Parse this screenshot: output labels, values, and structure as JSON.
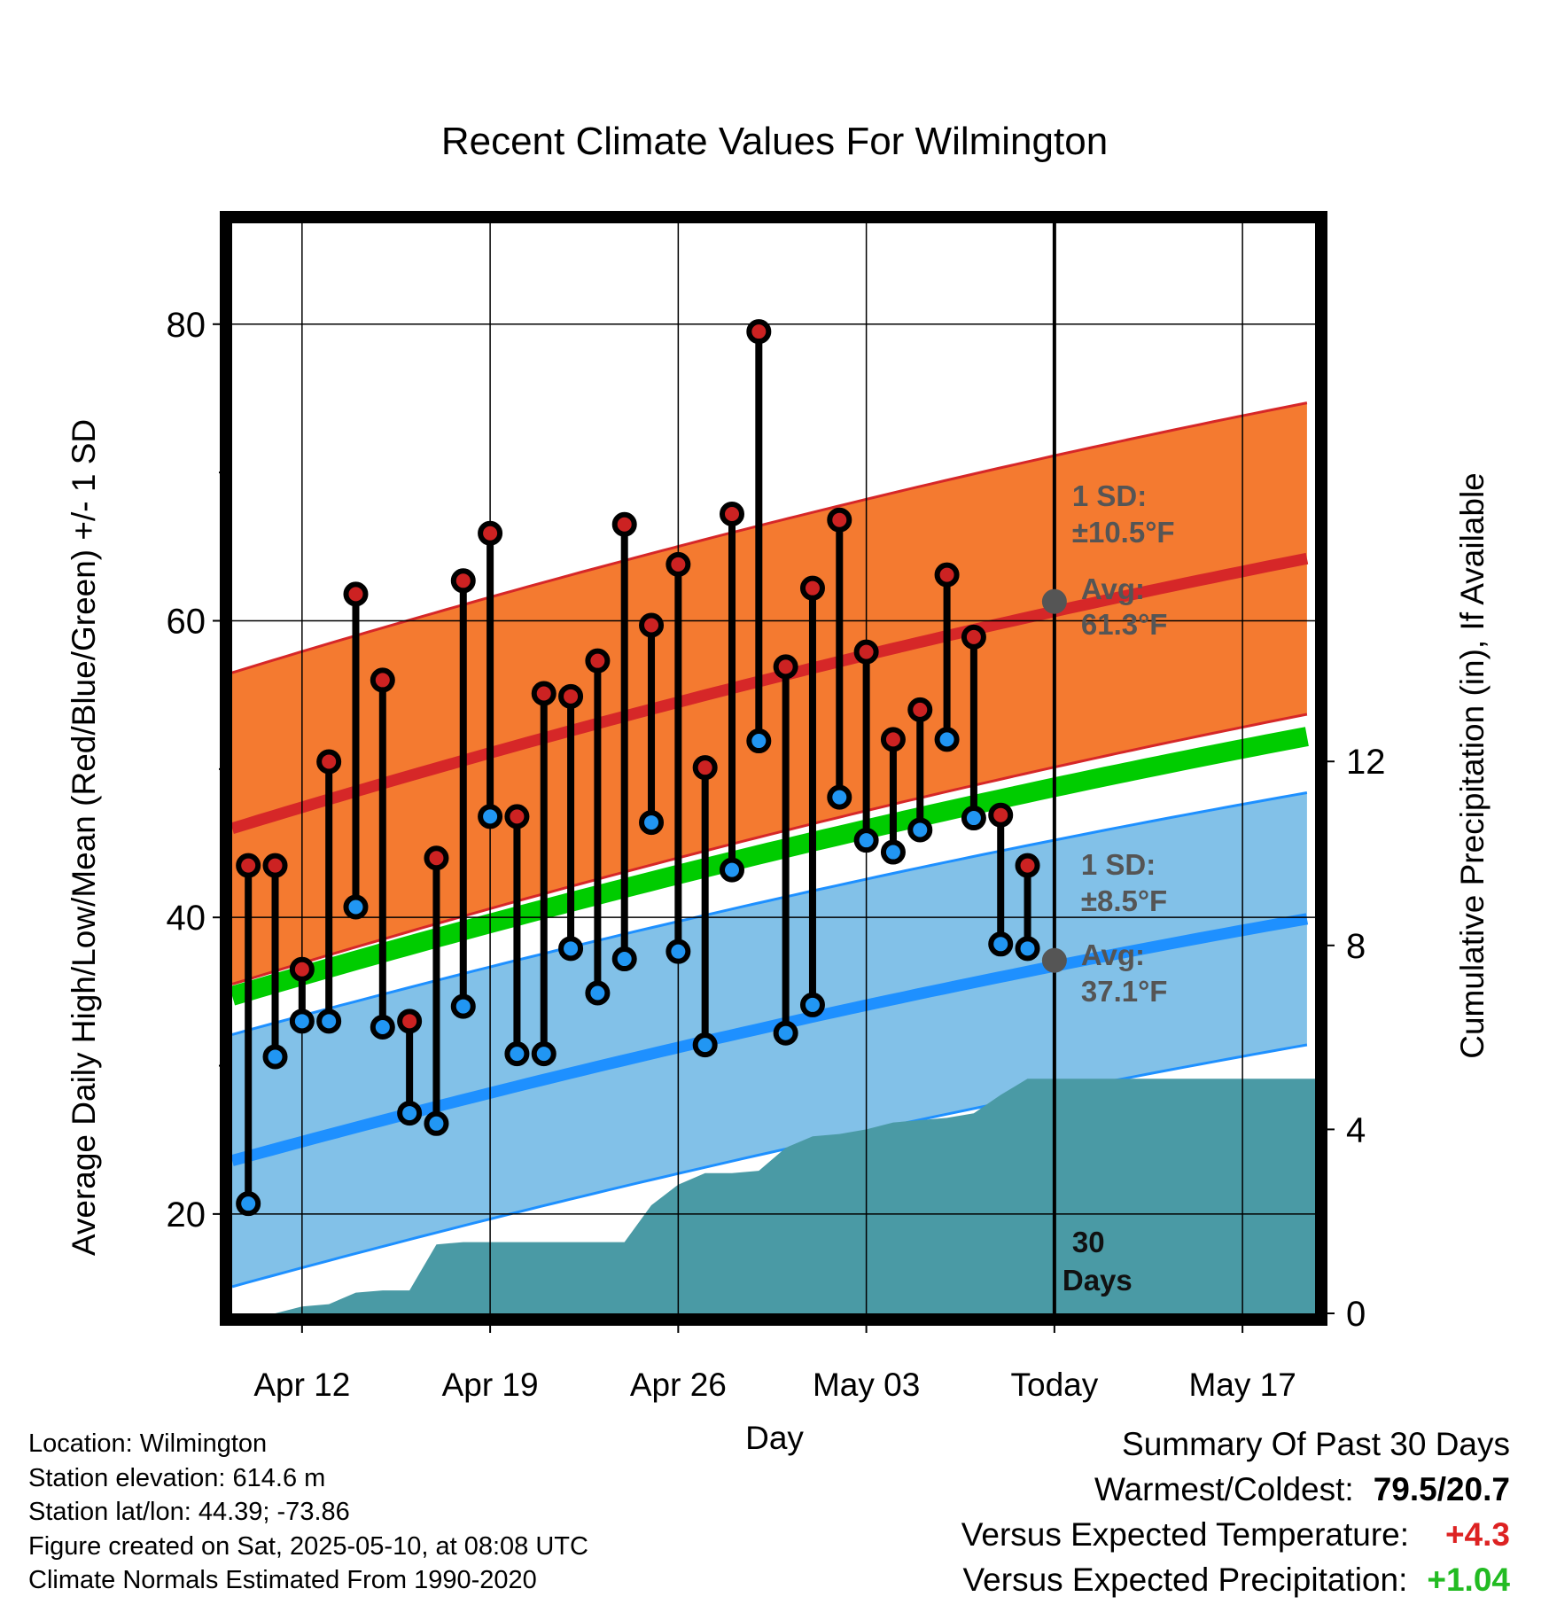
{
  "chart_data": {
    "type": "line",
    "title": "Recent Climate Values For Wilmington",
    "xlabel": "Day",
    "ylabel_left": "Average Daily High/Low/Mean (Red/Blue/Green) +/- 1 SD",
    "ylabel_right": "Cumulative Precipitation (in), If Available",
    "x_ticks": [
      "Apr 12",
      "Apr 19",
      "Apr 26",
      "May 03",
      "Today",
      "May 17"
    ],
    "y_ticks_left": [
      "20",
      "40",
      "60",
      "80"
    ],
    "y_ticks_right": [
      "0",
      "4",
      "8",
      "12"
    ],
    "y_left_range": [
      13.3,
      86.8
    ],
    "y_right_range": [
      0,
      23.7
    ],
    "x_range_days_from_apr12": [
      -2.6,
      37.7
    ],
    "days_axis_start": "Apr 10",
    "daily_high": [
      43.5,
      43.5,
      36.5,
      50.5,
      61.8,
      56.0,
      33.0,
      44.0,
      62.7,
      65.9,
      46.8,
      55.1,
      54.9,
      57.3,
      66.5,
      59.7,
      63.8,
      50.1,
      67.2,
      79.5,
      56.9,
      62.2,
      66.8,
      57.9,
      52.0,
      54.0,
      63.1,
      58.9,
      46.9,
      43.5
    ],
    "daily_low": [
      20.7,
      30.6,
      33.0,
      33.0,
      40.7,
      32.6,
      26.8,
      26.1,
      34.0,
      46.8,
      30.8,
      30.8,
      37.9,
      34.9,
      37.2,
      46.4,
      37.7,
      31.4,
      43.2,
      51.9,
      32.2,
      34.1,
      48.1,
      45.2,
      44.4,
      45.9,
      52.0,
      46.7,
      38.2,
      37.9
    ],
    "normal_high": {
      "start": 46.0,
      "end": 64.3,
      "sd": 10.5
    },
    "normal_low": {
      "start": 23.6,
      "end": 40.0,
      "sd": 8.5
    },
    "normal_mean": {
      "start": 34.7,
      "end": 52.3
    },
    "today_markers": {
      "high_sd_label": "1 SD:",
      "high_sd_value": "±10.5°F",
      "high_avg_label": "Avg:",
      "high_avg_value": "61.3°F",
      "low_sd_label": "1 SD:",
      "low_sd_value": "±8.5°F",
      "low_avg_label": "Avg:",
      "low_avg_value": "37.1°F",
      "window_label": [
        "30",
        "Days"
      ]
    },
    "precip_cumulative": [
      0,
      0,
      0.15,
      0.2,
      0.45,
      0.5,
      0.5,
      1.5,
      1.55,
      1.55,
      1.55,
      1.55,
      1.55,
      1.55,
      1.55,
      2.35,
      2.8,
      3.05,
      3.05,
      3.1,
      3.6,
      3.85,
      3.9,
      4.0,
      4.15,
      4.2,
      4.25,
      4.35,
      4.75,
      5.1,
      5.1
    ],
    "grid": true,
    "colors": {
      "high_band": "#f47a30",
      "high_line": "#d62728",
      "low_band": "#82c1e8",
      "low_line": "#1e90ff",
      "mean_line": "#00cc00",
      "precip": "#4a9aa5",
      "high_marker": "#cc2222",
      "low_marker": "#2196f3",
      "annotation": "#555555"
    }
  },
  "info": {
    "location": "Location: Wilmington",
    "elevation": "Station elevation: 614.6 m",
    "latlon": "Station lat/lon: 44.39; -73.86",
    "created": "Figure created on Sat, 2025-05-10, at 08:08 UTC",
    "normals": "Climate Normals Estimated From 1990-2020"
  },
  "summary": {
    "heading": "Summary Of Past 30 Days",
    "warm_cold_label": "Warmest/Coldest:",
    "warm_cold_value": "79.5/20.7",
    "temp_label": "Versus Expected Temperature:",
    "temp_value": "+4.3",
    "temp_color": "#dd2222",
    "precip_label": "Versus Expected Precipitation:",
    "precip_value": "+1.04",
    "precip_color": "#22bb22"
  }
}
